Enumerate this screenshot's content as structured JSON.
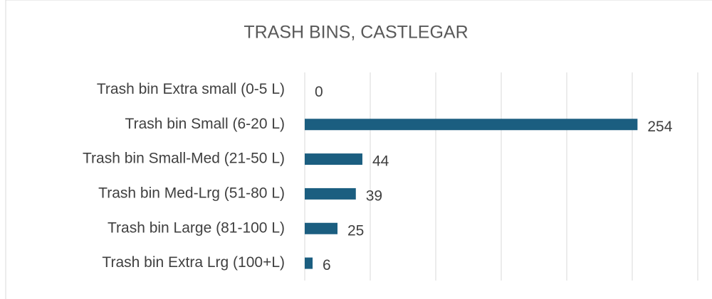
{
  "chart_data": {
    "type": "barh",
    "title": "TRASH BINS, CASTLEGAR",
    "categories": [
      "Trash bin Extra small (0-5 L)",
      "Trash bin Small (6-20 L)",
      "Trash bin Small-Med (21-50 L)",
      "Trash bin Med-Lrg (51-80 L)",
      "Trash bin Large (81-100 L)",
      "Trash bin Extra Lrg (100+L)"
    ],
    "values": [
      0,
      254,
      44,
      39,
      25,
      6
    ],
    "color": "#1b5e80",
    "xlim": [
      0,
      300
    ],
    "xticks": [
      0,
      50,
      100,
      150,
      200,
      250,
      300
    ],
    "grid": true
  }
}
